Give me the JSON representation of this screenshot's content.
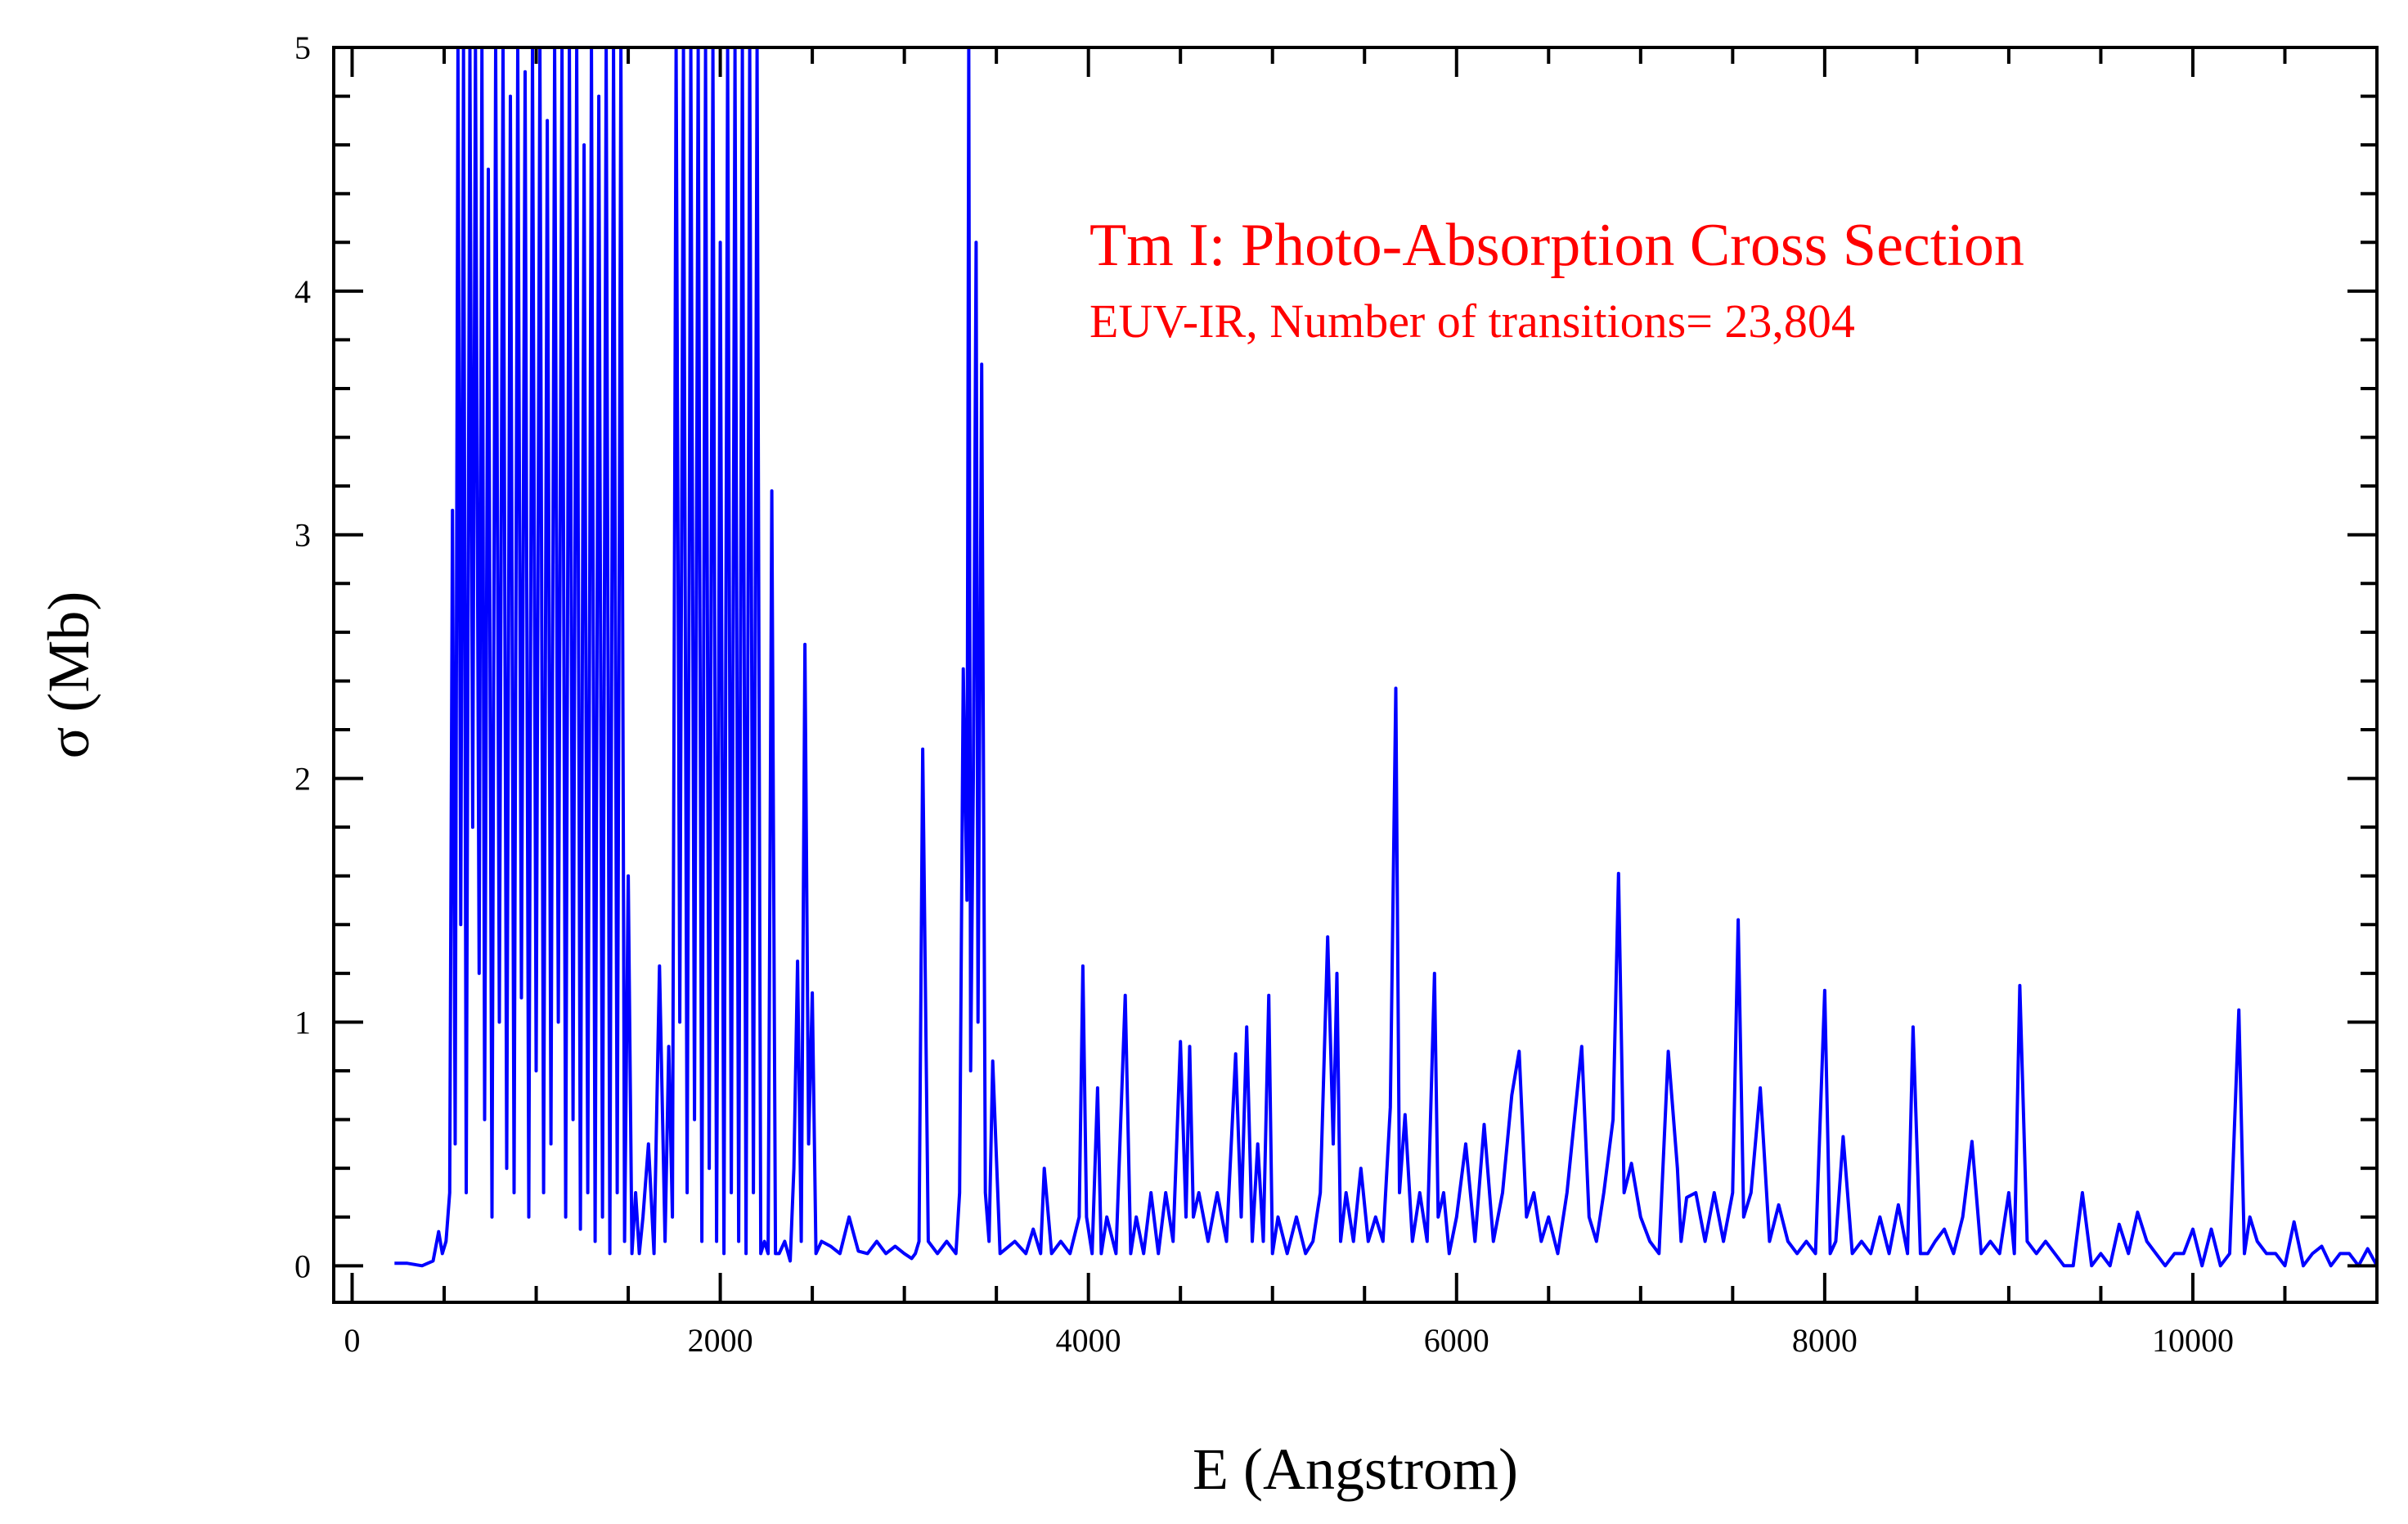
{
  "chart_data": {
    "type": "line",
    "title": "",
    "xlabel": "E (Angstrom)",
    "ylabel": "σ (Mb)",
    "xlim": [
      -100,
      11000
    ],
    "ylim": [
      -0.15,
      5
    ],
    "x_ticks": [
      0,
      2000,
      4000,
      6000,
      8000,
      10000
    ],
    "y_ticks": [
      0,
      1,
      2,
      3,
      4,
      5
    ],
    "grid": false,
    "annotations": [
      "Tm I: Photo-Absorption Cross Section",
      "EUV-IR, Number of transitions= 23,804"
    ],
    "annotation_color": "#ff0000",
    "series": [
      {
        "color": "#0000ff",
        "x": [
          230,
          300,
          380,
          440,
          470,
          490,
          510,
          530,
          545,
          560,
          575,
          590,
          605,
          620,
          640,
          655,
          670,
          690,
          705,
          720,
          740,
          760,
          780,
          800,
          820,
          840,
          860,
          880,
          900,
          920,
          940,
          960,
          980,
          1000,
          1020,
          1040,
          1060,
          1080,
          1100,
          1120,
          1140,
          1160,
          1180,
          1200,
          1220,
          1240,
          1260,
          1280,
          1300,
          1320,
          1340,
          1360,
          1380,
          1400,
          1420,
          1440,
          1460,
          1480,
          1500,
          1520,
          1540,
          1560,
          1580,
          1610,
          1640,
          1670,
          1700,
          1720,
          1740,
          1760,
          1780,
          1800,
          1820,
          1840,
          1860,
          1880,
          1900,
          1920,
          1940,
          1960,
          1980,
          2000,
          2020,
          2040,
          2060,
          2080,
          2100,
          2120,
          2140,
          2160,
          2180,
          2200,
          2220,
          2240,
          2260,
          2280,
          2300,
          2320,
          2350,
          2380,
          2400,
          2420,
          2440,
          2460,
          2480,
          2500,
          2520,
          2550,
          2600,
          2650,
          2700,
          2750,
          2800,
          2850,
          2900,
          2950,
          3000,
          3040,
          3060,
          3080,
          3100,
          3130,
          3180,
          3230,
          3280,
          3300,
          3320,
          3340,
          3350,
          3360,
          3375,
          3390,
          3400,
          3420,
          3440,
          3460,
          3480,
          3520,
          3600,
          3660,
          3700,
          3740,
          3760,
          3800,
          3850,
          3900,
          3950,
          3970,
          3990,
          4020,
          4050,
          4070,
          4100,
          4150,
          4200,
          4230,
          4260,
          4300,
          4340,
          4380,
          4420,
          4460,
          4500,
          4530,
          4550,
          4570,
          4600,
          4650,
          4700,
          4750,
          4800,
          4830,
          4860,
          4890,
          4920,
          4950,
          4980,
          5000,
          5030,
          5080,
          5130,
          5180,
          5220,
          5260,
          5300,
          5330,
          5350,
          5370,
          5400,
          5440,
          5480,
          5520,
          5560,
          5600,
          5640,
          5670,
          5690,
          5720,
          5760,
          5800,
          5840,
          5880,
          5900,
          5930,
          5960,
          6000,
          6050,
          6100,
          6150,
          6200,
          6250,
          6300,
          6340,
          6380,
          6420,
          6460,
          6500,
          6550,
          6600,
          6640,
          6680,
          6720,
          6760,
          6800,
          6850,
          6880,
          6910,
          6950,
          7000,
          7050,
          7100,
          7150,
          7200,
          7220,
          7250,
          7300,
          7350,
          7400,
          7450,
          7500,
          7530,
          7560,
          7600,
          7650,
          7700,
          7750,
          7800,
          7850,
          7900,
          7950,
          8000,
          8030,
          8060,
          8100,
          8150,
          8200,
          8250,
          8300,
          8350,
          8400,
          8450,
          8480,
          8520,
          8560,
          8600,
          8650,
          8700,
          8750,
          8800,
          8850,
          8900,
          8950,
          9000,
          9030,
          9060,
          9100,
          9150,
          9200,
          9250,
          9300,
          9350,
          9400,
          9450,
          9500,
          9550,
          9600,
          9650,
          9700,
          9750,
          9800,
          9850,
          9900,
          9950,
          10000,
          10050,
          10100,
          10150,
          10200,
          10250,
          10280,
          10310,
          10350,
          10400,
          10450,
          10500,
          10550,
          10600,
          10650,
          10700,
          10750,
          10800,
          10850,
          10900,
          10950,
          11000
        ],
        "y": [
          0.01,
          0.01,
          0.0,
          0.02,
          0.14,
          0.05,
          0.1,
          0.3,
          3.1,
          0.5,
          5.0,
          1.4,
          5.0,
          0.3,
          5.0,
          1.8,
          5.0,
          1.2,
          5.0,
          0.6,
          4.5,
          0.2,
          5.0,
          1.0,
          5.0,
          0.4,
          4.8,
          0.3,
          5.0,
          1.1,
          4.9,
          0.2,
          5.0,
          0.8,
          5.0,
          0.3,
          4.7,
          0.5,
          5.0,
          1.0,
          5.0,
          0.2,
          5.0,
          0.6,
          5.0,
          0.15,
          4.6,
          0.3,
          5.0,
          0.1,
          4.8,
          0.2,
          5.0,
          0.05,
          5.0,
          0.3,
          5.0,
          0.1,
          1.6,
          0.05,
          0.3,
          0.05,
          0.2,
          0.5,
          0.05,
          1.23,
          0.1,
          0.9,
          0.2,
          5.0,
          1.0,
          5.0,
          0.3,
          5.0,
          0.6,
          5.0,
          0.1,
          5.0,
          0.4,
          5.0,
          0.1,
          4.2,
          0.05,
          5.0,
          0.3,
          5.0,
          0.1,
          5.0,
          0.05,
          5.0,
          0.3,
          5.0,
          0.05,
          0.1,
          0.05,
          3.18,
          0.05,
          0.05,
          0.1,
          0.02,
          0.4,
          1.25,
          0.1,
          2.55,
          0.5,
          1.12,
          0.05,
          0.1,
          0.08,
          0.05,
          0.2,
          0.06,
          0.05,
          0.1,
          0.05,
          0.08,
          0.05,
          0.03,
          0.05,
          0.1,
          2.12,
          0.1,
          0.05,
          0.1,
          0.05,
          0.3,
          2.45,
          1.5,
          5.0,
          0.8,
          2.0,
          4.2,
          1.0,
          3.7,
          0.3,
          0.1,
          0.84,
          0.05,
          0.1,
          0.05,
          0.15,
          0.05,
          0.4,
          0.05,
          0.1,
          0.05,
          0.2,
          1.23,
          0.2,
          0.05,
          0.73,
          0.05,
          0.2,
          0.05,
          1.11,
          0.05,
          0.2,
          0.05,
          0.3,
          0.05,
          0.3,
          0.1,
          0.92,
          0.2,
          0.9,
          0.2,
          0.3,
          0.1,
          0.3,
          0.1,
          0.87,
          0.2,
          0.98,
          0.1,
          0.5,
          0.1,
          1.11,
          0.05,
          0.2,
          0.05,
          0.2,
          0.05,
          0.1,
          0.3,
          1.35,
          0.5,
          1.2,
          0.1,
          0.3,
          0.1,
          0.4,
          0.1,
          0.2,
          0.1,
          0.65,
          2.37,
          0.3,
          0.62,
          0.1,
          0.3,
          0.1,
          1.2,
          0.2,
          0.3,
          0.05,
          0.2,
          0.5,
          0.1,
          0.58,
          0.1,
          0.3,
          0.7,
          0.88,
          0.2,
          0.3,
          0.1,
          0.2,
          0.05,
          0.3,
          0.6,
          0.9,
          0.2,
          0.1,
          0.3,
          0.6,
          1.61,
          0.3,
          0.42,
          0.2,
          0.1,
          0.05,
          0.88,
          0.4,
          0.1,
          0.28,
          0.3,
          0.1,
          0.3,
          0.1,
          0.3,
          1.42,
          0.2,
          0.3,
          0.73,
          0.1,
          0.25,
          0.1,
          0.05,
          0.1,
          0.05,
          1.13,
          0.05,
          0.1,
          0.53,
          0.05,
          0.1,
          0.05,
          0.2,
          0.05,
          0.25,
          0.05,
          0.98,
          0.05,
          0.05,
          0.1,
          0.15,
          0.05,
          0.2,
          0.51,
          0.05,
          0.1,
          0.05,
          0.3,
          0.05,
          1.15,
          0.1,
          0.05,
          0.1,
          0.05,
          0.0,
          0.0,
          0.3,
          0.0,
          0.05,
          0.0,
          0.17,
          0.05,
          0.22,
          0.1,
          0.05,
          0.0,
          0.05,
          0.05,
          0.15,
          0.0,
          0.15,
          0.0,
          0.05,
          1.05,
          0.05,
          0.2,
          0.1,
          0.05,
          0.05,
          0.0,
          0.18,
          0.0,
          0.05,
          0.08,
          0.0,
          0.05,
          0.05,
          0.0,
          0.07,
          0.0
        ]
      }
    ]
  }
}
